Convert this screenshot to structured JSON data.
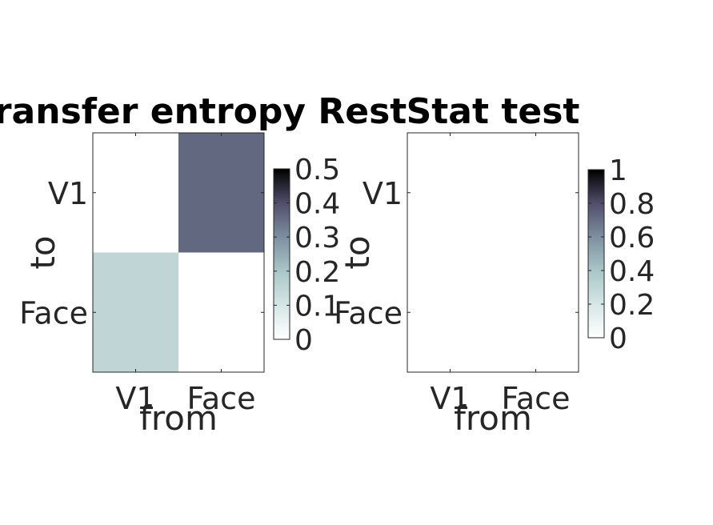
{
  "chart_data": [
    {
      "type": "heatmap",
      "title": "Transfer entropy Rest",
      "xlabel": "from",
      "ylabel": "to",
      "x_categories": [
        "V1",
        "Face"
      ],
      "y_categories": [
        "V1",
        "Face"
      ],
      "values": [
        [
          0,
          0.36
        ],
        [
          0.15,
          0
        ]
      ],
      "colorbar": {
        "range": [
          0,
          0.5
        ],
        "ticks": [
          "0",
          "0.1",
          "0.2",
          "0.3",
          "0.4",
          "0.5"
        ]
      },
      "colormap": "bone (reversed)"
    },
    {
      "type": "heatmap",
      "title": "Stat test",
      "xlabel": "from",
      "ylabel": "to",
      "x_categories": [
        "V1",
        "Face"
      ],
      "y_categories": [
        "V1",
        "Face"
      ],
      "values": [
        [
          0,
          0
        ],
        [
          0,
          0
        ]
      ],
      "colorbar": {
        "range": [
          0,
          1
        ],
        "ticks": [
          "0",
          "0.2",
          "0.4",
          "0.6",
          "0.8",
          "1"
        ]
      },
      "colormap": "bone (reversed)"
    }
  ]
}
